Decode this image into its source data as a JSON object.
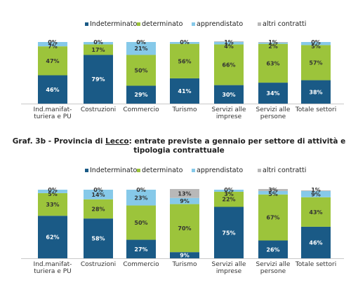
{
  "colors": {
    "indeterminato": "#1a5a86",
    "determinato": "#9cc43b",
    "apprendistato": "#86c9e9",
    "altri": "#b8b8b8"
  },
  "chart_data": [
    {
      "type": "bar",
      "stacked": true,
      "percent": true,
      "categories": [
        [
          "Ind.manifat-",
          "turiera e PU"
        ],
        [
          "Costruzioni"
        ],
        [
          "Commercio"
        ],
        [
          "Turismo"
        ],
        [
          "Servizi alle",
          "imprese"
        ],
        [
          "Servizi alle",
          "persone"
        ],
        [
          "Totale settori"
        ]
      ],
      "series": [
        {
          "name": "Indeterminato",
          "color": "#1a5a86",
          "values": [
            46,
            79,
            29,
            41,
            30,
            34,
            38
          ]
        },
        {
          "name": "determinato",
          "color": "#9cc43b",
          "values": [
            47,
            17,
            50,
            56,
            66,
            63,
            57
          ]
        },
        {
          "name": "apprendistato",
          "color": "#86c9e9",
          "values": [
            7,
            4,
            21,
            3,
            4,
            2,
            5
          ]
        },
        {
          "name": "altri contratti",
          "color": "#b8b8b8",
          "values": [
            0,
            0,
            0,
            0,
            1,
            1,
            0
          ]
        }
      ],
      "labels": [
        [
          "46%",
          "47%",
          "7%",
          "0%"
        ],
        [
          "79%",
          "17%",
          "",
          "0%"
        ],
        [
          "29%",
          "50%",
          "21%",
          "0%"
        ],
        [
          "41%",
          "56%",
          "",
          "0%"
        ],
        [
          "30%",
          "66%",
          "4%",
          "1%"
        ],
        [
          "34%",
          "63%",
          "2%",
          "1%"
        ],
        [
          "38%",
          "57%",
          "5%",
          "0%"
        ]
      ],
      "ylim": [
        0,
        100
      ],
      "legend_position": "top"
    },
    {
      "type": "bar",
      "stacked": true,
      "percent": true,
      "title": "Graf. 3b - Provincia di Lecco: entrate previste a gennaio per settore di attività e tipologia contrattuale",
      "categories": [
        [
          "Ind.manifat-",
          "turiera e PU"
        ],
        [
          "Costruzioni"
        ],
        [
          "Commercio"
        ],
        [
          "Turismo"
        ],
        [
          "Servizi alle",
          "imprese"
        ],
        [
          "Servizi alle",
          "persone"
        ],
        [
          "Totale settori"
        ]
      ],
      "series": [
        {
          "name": "Indeterminato",
          "color": "#1a5a86",
          "values": [
            62,
            58,
            27,
            9,
            75,
            26,
            46
          ]
        },
        {
          "name": "determinato",
          "color": "#9cc43b",
          "values": [
            33,
            28,
            50,
            70,
            22,
            67,
            43
          ]
        },
        {
          "name": "apprendistato",
          "color": "#86c9e9",
          "values": [
            5,
            14,
            23,
            9,
            3,
            5,
            9
          ]
        },
        {
          "name": "altri contratti",
          "color": "#b8b8b8",
          "values": [
            0,
            0,
            0,
            13,
            0,
            3,
            1
          ]
        }
      ],
      "labels": [
        [
          "62%",
          "33%",
          "5%",
          "0%"
        ],
        [
          "58%",
          "28%",
          "14%",
          "0%"
        ],
        [
          "27%",
          "50%",
          "23%",
          "0%"
        ],
        [
          "9%",
          "70%",
          "9%",
          "13%"
        ],
        [
          "75%",
          "22%",
          "3%",
          "0%"
        ],
        [
          "26%",
          "67%",
          "5%",
          "3%"
        ],
        [
          "46%",
          "43%",
          "9%",
          "1%"
        ]
      ],
      "ylim": [
        0,
        100
      ],
      "legend_position": "top"
    }
  ],
  "caption": {
    "line1_prefix": "Graf. 3b - Provincia di ",
    "line1_place": "Lecco",
    "line1_suffix": ": entrate previste a gennaio per settore di attività e",
    "line2": "tipologia contrattuale"
  }
}
